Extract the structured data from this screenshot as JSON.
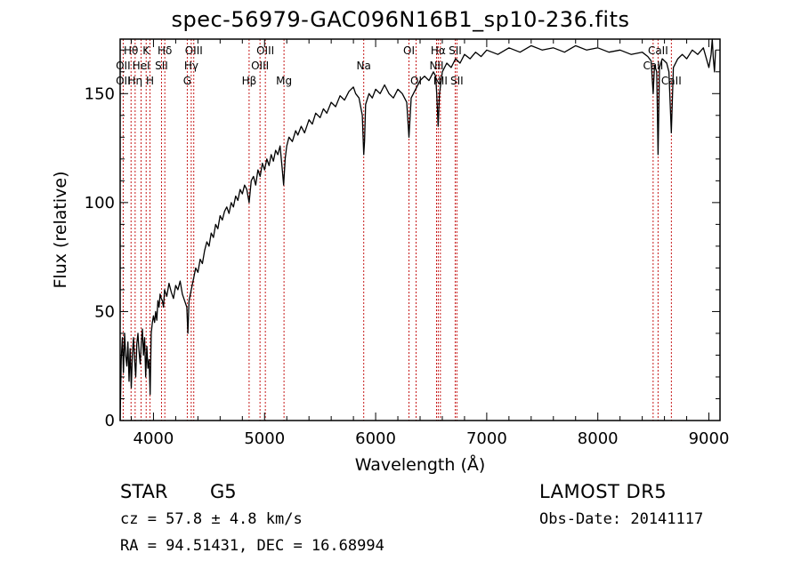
{
  "title": "spec-56979-GAC096N16B1_sp10-236.fits",
  "info": {
    "class": "STAR",
    "subclass": "G5",
    "survey": "LAMOST DR5",
    "cz": "cz = 57.8 ± 4.8 km/s",
    "obs_date": "Obs-Date: 20141117",
    "radec": "RA =  94.51431, DEC =  16.68994"
  },
  "colors": {
    "line_marker": "#c00000",
    "spectrum": "#000000",
    "axes": "#000000"
  },
  "chart_data": {
    "type": "line",
    "title": "spec-56979-GAC096N16B1_sp10-236.fits",
    "xlabel": "Wavelength (Å)",
    "ylabel": "Flux (relative)",
    "xlim": [
      3700,
      9100
    ],
    "ylim": [
      0,
      175
    ],
    "xticks": [
      4000,
      5000,
      6000,
      7000,
      8000,
      9000
    ],
    "yticks": [
      0,
      50,
      100,
      150
    ],
    "grid": false,
    "series": [
      {
        "points": [
          [
            3700,
            0
          ],
          [
            3710,
            28
          ],
          [
            3720,
            38
          ],
          [
            3730,
            22
          ],
          [
            3740,
            40
          ],
          [
            3750,
            30
          ],
          [
            3760,
            25
          ],
          [
            3770,
            36
          ],
          [
            3780,
            18
          ],
          [
            3790,
            33
          ],
          [
            3800,
            15
          ],
          [
            3810,
            30
          ],
          [
            3820,
            38
          ],
          [
            3830,
            28
          ],
          [
            3840,
            20
          ],
          [
            3850,
            35
          ],
          [
            3860,
            40
          ],
          [
            3870,
            32
          ],
          [
            3880,
            26
          ],
          [
            3890,
            35
          ],
          [
            3900,
            42
          ],
          [
            3910,
            30
          ],
          [
            3920,
            38
          ],
          [
            3930,
            20
          ],
          [
            3940,
            34
          ],
          [
            3950,
            24
          ],
          [
            3960,
            28
          ],
          [
            3970,
            12
          ],
          [
            3980,
            40
          ],
          [
            3990,
            45
          ],
          [
            4000,
            48
          ],
          [
            4010,
            45
          ],
          [
            4020,
            50
          ],
          [
            4030,
            46
          ],
          [
            4040,
            55
          ],
          [
            4050,
            52
          ],
          [
            4060,
            58
          ],
          [
            4070,
            56
          ],
          [
            4080,
            55
          ],
          [
            4090,
            52
          ],
          [
            4100,
            60
          ],
          [
            4120,
            57
          ],
          [
            4140,
            63
          ],
          [
            4160,
            59
          ],
          [
            4180,
            56
          ],
          [
            4200,
            62
          ],
          [
            4220,
            60
          ],
          [
            4240,
            64
          ],
          [
            4260,
            58
          ],
          [
            4280,
            55
          ],
          [
            4300,
            52
          ],
          [
            4310,
            40
          ],
          [
            4320,
            55
          ],
          [
            4340,
            60
          ],
          [
            4360,
            65
          ],
          [
            4380,
            70
          ],
          [
            4400,
            68
          ],
          [
            4420,
            74
          ],
          [
            4440,
            72
          ],
          [
            4460,
            78
          ],
          [
            4480,
            82
          ],
          [
            4500,
            80
          ],
          [
            4520,
            86
          ],
          [
            4540,
            84
          ],
          [
            4560,
            90
          ],
          [
            4580,
            88
          ],
          [
            4600,
            94
          ],
          [
            4620,
            92
          ],
          [
            4640,
            96
          ],
          [
            4660,
            98
          ],
          [
            4680,
            95
          ],
          [
            4700,
            100
          ],
          [
            4720,
            98
          ],
          [
            4740,
            103
          ],
          [
            4760,
            101
          ],
          [
            4780,
            106
          ],
          [
            4800,
            104
          ],
          [
            4820,
            108
          ],
          [
            4840,
            106
          ],
          [
            4861,
            100
          ],
          [
            4880,
            110
          ],
          [
            4900,
            112
          ],
          [
            4920,
            108
          ],
          [
            4940,
            115
          ],
          [
            4960,
            112
          ],
          [
            4980,
            118
          ],
          [
            5000,
            115
          ],
          [
            5020,
            120
          ],
          [
            5040,
            117
          ],
          [
            5060,
            122
          ],
          [
            5080,
            119
          ],
          [
            5100,
            124
          ],
          [
            5120,
            122
          ],
          [
            5140,
            126
          ],
          [
            5160,
            115
          ],
          [
            5172,
            108
          ],
          [
            5185,
            120
          ],
          [
            5200,
            126
          ],
          [
            5220,
            130
          ],
          [
            5250,
            128
          ],
          [
            5280,
            133
          ],
          [
            5300,
            131
          ],
          [
            5330,
            135
          ],
          [
            5360,
            132
          ],
          [
            5400,
            138
          ],
          [
            5430,
            136
          ],
          [
            5460,
            141
          ],
          [
            5500,
            139
          ],
          [
            5530,
            143
          ],
          [
            5560,
            141
          ],
          [
            5600,
            146
          ],
          [
            5640,
            144
          ],
          [
            5680,
            149
          ],
          [
            5720,
            147
          ],
          [
            5760,
            151
          ],
          [
            5800,
            153
          ],
          [
            5820,
            150
          ],
          [
            5850,
            148
          ],
          [
            5880,
            140
          ],
          [
            5893,
            122
          ],
          [
            5900,
            128
          ],
          [
            5910,
            145
          ],
          [
            5940,
            150
          ],
          [
            5970,
            148
          ],
          [
            6000,
            152
          ],
          [
            6040,
            150
          ],
          [
            6080,
            154
          ],
          [
            6120,
            150
          ],
          [
            6160,
            148
          ],
          [
            6200,
            152
          ],
          [
            6240,
            150
          ],
          [
            6260,
            148
          ],
          [
            6280,
            146
          ],
          [
            6300,
            130
          ],
          [
            6320,
            148
          ],
          [
            6360,
            152
          ],
          [
            6400,
            156
          ],
          [
            6440,
            158
          ],
          [
            6480,
            156
          ],
          [
            6520,
            160
          ],
          [
            6540,
            158
          ],
          [
            6550,
            150
          ],
          [
            6563,
            135
          ],
          [
            6575,
            150
          ],
          [
            6600,
            160
          ],
          [
            6640,
            164
          ],
          [
            6680,
            162
          ],
          [
            6720,
            166
          ],
          [
            6760,
            164
          ],
          [
            6800,
            168
          ],
          [
            6850,
            166
          ],
          [
            6900,
            169
          ],
          [
            6950,
            167
          ],
          [
            7000,
            170
          ],
          [
            7100,
            168
          ],
          [
            7200,
            171
          ],
          [
            7300,
            169
          ],
          [
            7400,
            172
          ],
          [
            7500,
            170
          ],
          [
            7600,
            171
          ],
          [
            7700,
            169
          ],
          [
            7800,
            172
          ],
          [
            7900,
            170
          ],
          [
            8000,
            171
          ],
          [
            8100,
            169
          ],
          [
            8200,
            170
          ],
          [
            8300,
            168
          ],
          [
            8400,
            169
          ],
          [
            8450,
            167
          ],
          [
            8480,
            165
          ],
          [
            8498,
            150
          ],
          [
            8510,
            163
          ],
          [
            8530,
            160
          ],
          [
            8542,
            122
          ],
          [
            8555,
            162
          ],
          [
            8580,
            166
          ],
          [
            8620,
            164
          ],
          [
            8640,
            160
          ],
          [
            8662,
            132
          ],
          [
            8680,
            162
          ],
          [
            8720,
            166
          ],
          [
            8760,
            168
          ],
          [
            8800,
            166
          ],
          [
            8850,
            170
          ],
          [
            8900,
            168
          ],
          [
            8950,
            171
          ],
          [
            9000,
            162
          ],
          [
            9020,
            168
          ],
          [
            9030,
            175
          ],
          [
            9040,
            166
          ],
          [
            9050,
            160
          ],
          [
            9060,
            170
          ]
        ]
      }
    ],
    "annotations": [
      {
        "label": "Hθ",
        "x": 3798,
        "row": 0
      },
      {
        "label": "OII",
        "x": 3727,
        "row": 1
      },
      {
        "label": "OII",
        "x": 3727,
        "row": 2
      },
      {
        "label": "Hη",
        "x": 3835,
        "row": 2
      },
      {
        "label": "HeI",
        "x": 3889,
        "row": 1
      },
      {
        "label": "K",
        "x": 3934,
        "row": 0
      },
      {
        "label": "H",
        "x": 3969,
        "row": 2
      },
      {
        "label": "Hδ",
        "x": 4102,
        "row": 0
      },
      {
        "label": "SII",
        "x": 4072,
        "row": 1
      },
      {
        "label": "OIII",
        "x": 4363,
        "row": 0
      },
      {
        "label": "Hγ",
        "x": 4340,
        "row": 1
      },
      {
        "label": "G",
        "x": 4304,
        "row": 2
      },
      {
        "label": "OIII",
        "x": 5007,
        "row": 0
      },
      {
        "label": "OIII",
        "x": 4959,
        "row": 1
      },
      {
        "label": "Hβ",
        "x": 4861,
        "row": 2
      },
      {
        "label": "Mg",
        "x": 5175,
        "row": 2
      },
      {
        "label": "Na",
        "x": 5893,
        "row": 1
      },
      {
        "label": "OI",
        "x": 6300,
        "row": 0
      },
      {
        "label": "OI",
        "x": 6364,
        "row": 2
      },
      {
        "label": "Hα",
        "x": 6563,
        "row": 0
      },
      {
        "label": "NII",
        "x": 6548,
        "row": 1
      },
      {
        "label": "NII",
        "x": 6583,
        "row": 2
      },
      {
        "label": "SII",
        "x": 6716,
        "row": 0
      },
      {
        "label": "SII",
        "x": 6731,
        "row": 2
      },
      {
        "label": "CaII",
        "x": 8542,
        "row": 0
      },
      {
        "label": "CaII",
        "x": 8498,
        "row": 1
      },
      {
        "label": "CaII",
        "x": 8662,
        "row": 2
      }
    ],
    "marker_lines": [
      3727,
      3798,
      3835,
      3889,
      3934,
      3969,
      4072,
      4102,
      4304,
      4340,
      4363,
      4861,
      4959,
      5007,
      5175,
      5893,
      6300,
      6364,
      6548,
      6563,
      6583,
      6716,
      6731,
      8498,
      8542,
      8662
    ]
  }
}
